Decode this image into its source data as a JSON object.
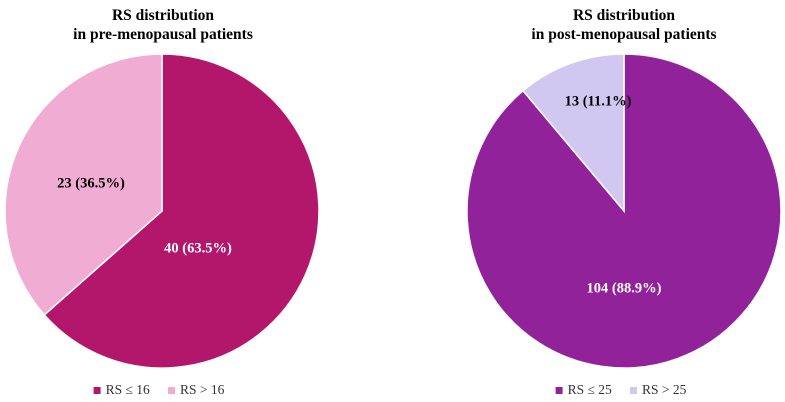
{
  "chart_data": [
    {
      "type": "pie",
      "title_line1": "RS distribution",
      "title_line2": "in pre-menopausal patients",
      "slices": [
        {
          "label": "RS ≤ 16",
          "value": 40,
          "percent": 63.5,
          "data_label": "40 (63.5%)",
          "color": "#b2176b",
          "label_color": "#ffffff"
        },
        {
          "label": "RS > 16",
          "value": 23,
          "percent": 36.5,
          "data_label": "23 (36.5%)",
          "color": "#f0acd3",
          "label_color": "#000000"
        }
      ],
      "legend_position": "bottom"
    },
    {
      "type": "pie",
      "title_line1": "RS distribution",
      "title_line2": "in post-menopausal patients",
      "slices": [
        {
          "label": "RS ≤ 25",
          "value": 104,
          "percent": 88.9,
          "data_label": "104 (88.9%)",
          "color": "#92229a",
          "label_color": "#ffffff"
        },
        {
          "label": "RS > 25",
          "value": 13,
          "percent": 11.1,
          "data_label": "13 (11.1%)",
          "color": "#d0c8f0",
          "label_color": "#000000"
        }
      ],
      "legend_position": "bottom"
    }
  ]
}
